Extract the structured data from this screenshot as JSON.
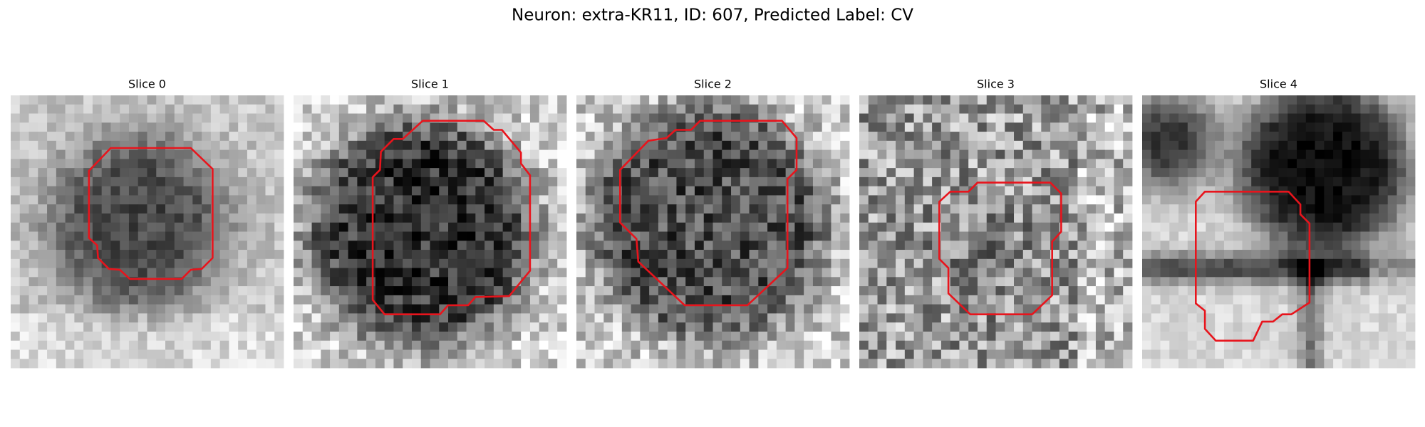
{
  "title": "Neuron: extra-KR11, ID: 607, Predicted Label: CV",
  "panels": [
    {
      "title": "Slice 0"
    },
    {
      "title": "Slice 1"
    },
    {
      "title": "Slice 2"
    },
    {
      "title": "Slice 3"
    },
    {
      "title": "Slice 4"
    }
  ]
}
